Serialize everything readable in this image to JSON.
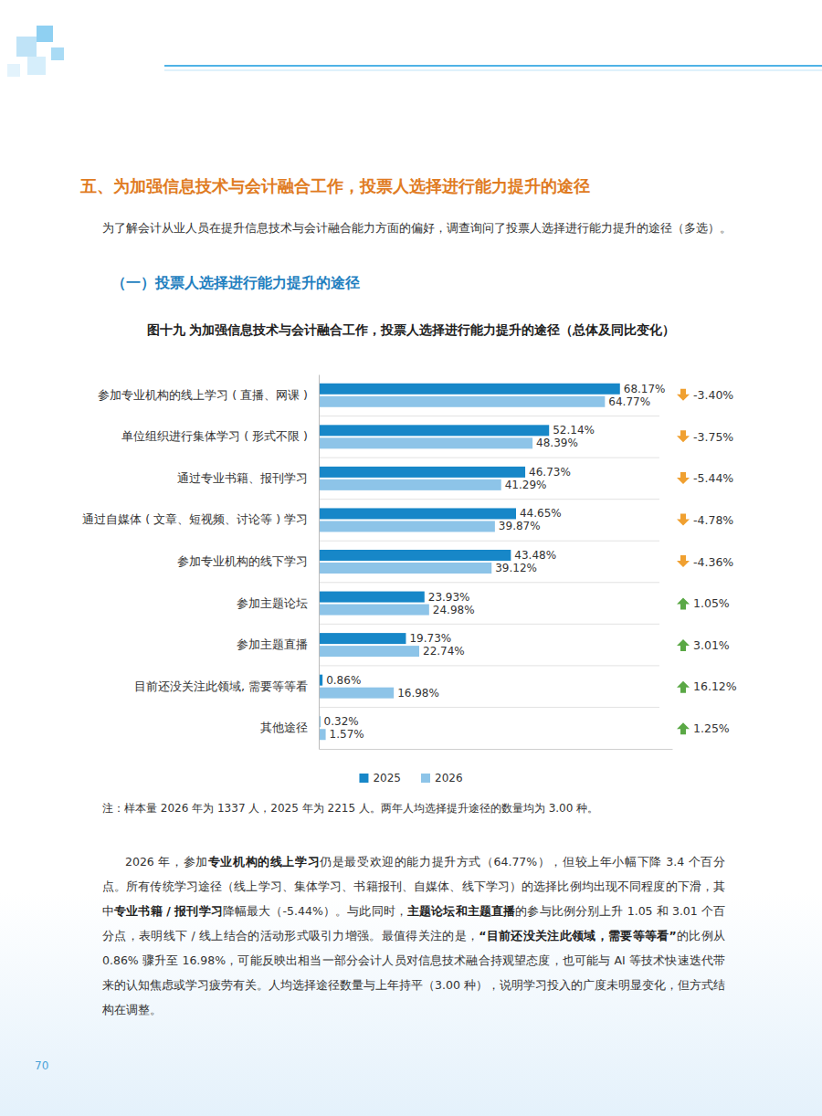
{
  "header": {
    "heading": "五、为加强信息技术与会计融合工作，投票人选择进行能力提升的途径",
    "intro": "为了解会计从业人员在提升信息技术与会计融合能力方面的偏好，调查询问了投票人选择进行能力提升的途径（多选）。",
    "subheading": "（一）投票人选择进行能力提升的途径"
  },
  "chart_data": {
    "type": "bar",
    "orientation": "horizontal",
    "title": "图十九  为加强信息技术与会计融合工作，投票人选择进行能力提升的途径（总体及同比变化）",
    "categories": [
      "参加专业机构的线上学习 ( 直播、网课 )",
      "单位组织进行集体学习 ( 形式不限 )",
      "通过专业书籍、报刊学习",
      "通过自媒体 ( 文章、短视频、讨论等 ) 学习",
      "参加专业机构的线下学习",
      "参加主题论坛",
      "参加主题直播",
      "目前还没关注此领域, 需要等等看",
      "其他途径"
    ],
    "series": [
      {
        "name": "2025",
        "color": "#1787c8",
        "values": [
          68.17,
          52.14,
          46.73,
          44.65,
          43.48,
          23.93,
          19.73,
          0.86,
          0.32
        ],
        "value_labels": [
          "68.17%",
          "52.14%",
          "46.73%",
          "44.65%",
          "43.48%",
          "23.93%",
          "19.73%",
          "0.86%",
          "0.32%"
        ]
      },
      {
        "name": "2026",
        "color": "#8dc4e8",
        "values": [
          64.77,
          48.39,
          41.29,
          39.87,
          39.12,
          24.98,
          22.74,
          16.98,
          1.57
        ],
        "value_labels": [
          "64.77%",
          "48.39%",
          "41.29%",
          "39.87%",
          "39.12%",
          "24.98%",
          "22.74%",
          "16.98%",
          "1.57%"
        ]
      }
    ],
    "yoy_change": {
      "values": [
        -3.4,
        -3.75,
        -5.44,
        -4.78,
        -4.36,
        1.05,
        3.01,
        16.12,
        1.25
      ],
      "value_labels": [
        "-3.40%",
        "-3.75%",
        "-5.44%",
        "-4.78%",
        "-4.36%",
        "1.05%",
        "3.01%",
        "16.12%",
        "1.25%"
      ]
    },
    "xlim": [
      0,
      80
    ],
    "grid": true,
    "data_labels": true,
    "legend": "bottom",
    "tick_labels": "y"
  },
  "note": "注：样本量 2026 年为 1337 人，2025 年为 2215 人。两年人均选择提升途径的数量均为 3.00 种。",
  "body": [
    {
      "text": "2026 年，参加"
    },
    {
      "text": "专业机构的线上学习",
      "bold": true
    },
    {
      "text": "仍是最受欢迎的能力提升方式（64.77%），但较上年小幅下降 3.4 个百分点。所有传统学习途径（线上学习、集体学习、书籍报刊、自媒体、线下学习）的选择比例均出现不同程度的下滑，其中"
    },
    {
      "text": "专业书籍 / 报刊学习",
      "bold": true
    },
    {
      "text": "降幅最大（-5.44%）。与此同时，"
    },
    {
      "text": "主题论坛和主题直播",
      "bold": true
    },
    {
      "text": "的参与比例分别上升 1.05 和 3.01 个百分点，表明线下 / 线上结合的活动形式吸引力增强。最值得关注的是，"
    },
    {
      "text": "“目前还没关注此领域，需要等等看”",
      "bold": true
    },
    {
      "text": "的比例从 0.86% 骤升至 16.98%，可能反映出相当一部分会计人员对信息技术融合持观望态度，也可能与 AI 等技术快速迭代带来的认知焦虑或学习疲劳有关。人均选择途径数量与上年持平（3.00 种），说明学习投入的广度未明显变化，但方式结构在调整。"
    }
  ],
  "page_number": "70"
}
